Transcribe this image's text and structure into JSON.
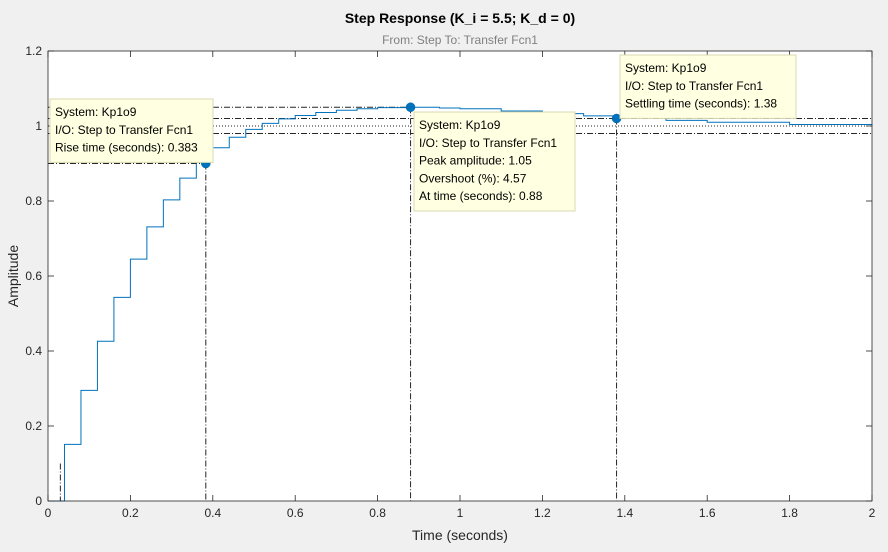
{
  "chart_data": {
    "type": "line",
    "title": "Step Response (K_i = 5.5; K_d = 0)",
    "subtitle": "From: Step  To: Transfer Fcn1",
    "xlabel": "Time (seconds)",
    "ylabel": "Amplitude",
    "xlim": [
      0,
      2
    ],
    "ylim": [
      0,
      1.2
    ],
    "xticks": [
      "0",
      "0.2",
      "0.4",
      "0.6",
      "0.8",
      "1",
      "1.2",
      "1.4",
      "1.6",
      "1.8",
      "2"
    ],
    "yticks": [
      "0",
      "0.2",
      "0.4",
      "0.6",
      "0.8",
      "1",
      "1.2"
    ],
    "grid": false,
    "series": [
      {
        "name": "Kp1o9",
        "style": "stairs",
        "color": "#0072bd",
        "x": [
          0,
          0.04,
          0.08,
          0.12,
          0.16,
          0.2,
          0.24,
          0.28,
          0.32,
          0.36,
          0.4,
          0.44,
          0.48,
          0.52,
          0.56,
          0.6,
          0.65,
          0.7,
          0.75,
          0.8,
          0.88,
          0.95,
          1.0,
          1.1,
          1.2,
          1.3,
          1.38,
          1.5,
          1.6,
          1.8,
          2.0
        ],
        "y": [
          0,
          0.151,
          0.295,
          0.426,
          0.543,
          0.645,
          0.731,
          0.803,
          0.861,
          0.906,
          0.942,
          0.97,
          0.991,
          1.007,
          1.019,
          1.028,
          1.036,
          1.042,
          1.046,
          1.049,
          1.05,
          1.048,
          1.046,
          1.04,
          1.033,
          1.027,
          1.022,
          1.015,
          1.01,
          1.004,
          1.001
        ]
      }
    ],
    "reference_lines": {
      "final_value": 1.0,
      "settling_band": [
        0.98,
        1.02
      ]
    },
    "markers": [
      {
        "name": "rise-time",
        "x": 0.383,
        "y": 0.9
      },
      {
        "name": "peak",
        "x": 0.88,
        "y": 1.05
      },
      {
        "name": "settling",
        "x": 1.38,
        "y": 1.02
      }
    ],
    "annotations": {
      "rise": [
        "System: Kp1o9",
        "I/O: Step to Transfer Fcn1",
        "Rise time (seconds): 0.383"
      ],
      "peak": [
        "System: Kp1o9",
        "I/O: Step to Transfer Fcn1",
        "Peak amplitude: 1.05",
        "Overshoot (%): 4.57",
        "At time (seconds): 0.88"
      ],
      "settling": [
        "System: Kp1o9",
        "I/O: Step to Transfer Fcn1",
        "Settling time (seconds): 1.38"
      ]
    }
  }
}
